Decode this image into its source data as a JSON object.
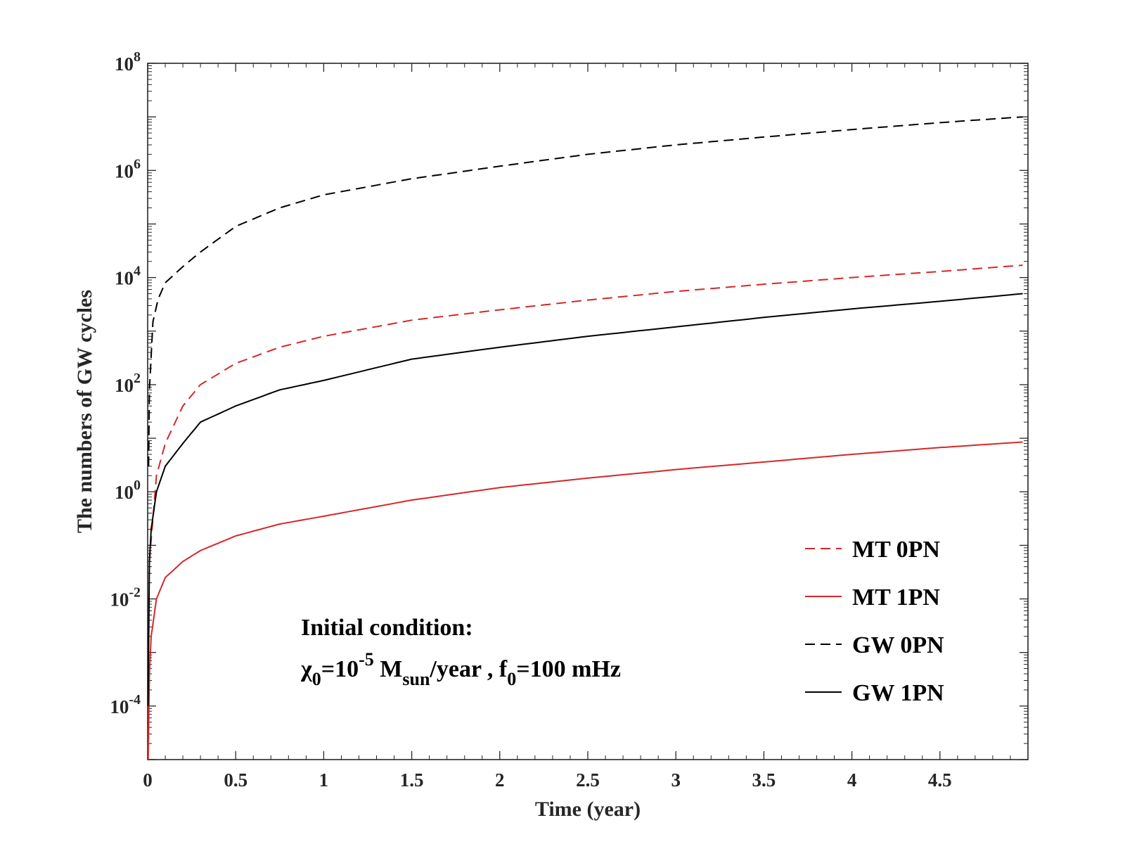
{
  "chart_data": {
    "type": "line",
    "xlabel": "Time (year)",
    "ylabel": "The numbers of GW cycles",
    "xlim": [
      0,
      5
    ],
    "ylim_log10": [
      -5,
      8
    ],
    "yscale": "log",
    "x_ticks": [
      0,
      0.5,
      1,
      1.5,
      2,
      2.5,
      3,
      3.5,
      4,
      4.5
    ],
    "x_tick_labels": [
      "0",
      "0.5",
      "1",
      "1.5",
      "2",
      "2.5",
      "3",
      "3.5",
      "4",
      "4.5"
    ],
    "y_ticks": [
      {
        "base": "10",
        "exp": "-4",
        "log": -4
      },
      {
        "base": "10",
        "exp": "-2",
        "log": -2
      },
      {
        "base": "10",
        "exp": "0",
        "log": 0
      },
      {
        "base": "10",
        "exp": "2",
        "log": 2
      },
      {
        "base": "10",
        "exp": "4",
        "log": 4
      },
      {
        "base": "10",
        "exp": "6",
        "log": 6
      },
      {
        "base": "10",
        "exp": "8",
        "log": 8
      }
    ],
    "legend_position": "bottom-right",
    "series": [
      {
        "name": "MT 0PN",
        "color": "#d62728",
        "dash": "dashed",
        "points": [
          [
            0.01,
            0.05
          ],
          [
            0.05,
            2
          ],
          [
            0.1,
            8
          ],
          [
            0.2,
            40
          ],
          [
            0.3,
            100
          ],
          [
            0.5,
            250
          ],
          [
            0.75,
            500
          ],
          [
            1,
            800
          ],
          [
            1.5,
            1600
          ],
          [
            2,
            2500
          ],
          [
            2.5,
            3800
          ],
          [
            3,
            5500
          ],
          [
            3.5,
            7500
          ],
          [
            4,
            10000
          ],
          [
            4.5,
            13000
          ],
          [
            4.97,
            17000
          ]
        ]
      },
      {
        "name": "MT 1PN",
        "color": "#d62728",
        "dash": "solid",
        "points": [
          [
            0.003,
            1e-05
          ],
          [
            0.01,
            0.0004
          ],
          [
            0.02,
            0.002
          ],
          [
            0.05,
            0.01
          ],
          [
            0.1,
            0.025
          ],
          [
            0.2,
            0.05
          ],
          [
            0.3,
            0.08
          ],
          [
            0.5,
            0.15
          ],
          [
            0.75,
            0.25
          ],
          [
            1,
            0.35
          ],
          [
            1.5,
            0.7
          ],
          [
            2,
            1.2
          ],
          [
            2.5,
            1.8
          ],
          [
            3,
            2.6
          ],
          [
            3.5,
            3.6
          ],
          [
            4,
            5
          ],
          [
            4.5,
            6.7
          ],
          [
            4.97,
            8.5
          ]
        ]
      },
      {
        "name": "GW 0PN",
        "color": "#000000",
        "dash": "dashed",
        "points": [
          [
            0.005,
            3
          ],
          [
            0.01,
            80
          ],
          [
            0.03,
            1500
          ],
          [
            0.06,
            4000
          ],
          [
            0.1,
            8000
          ],
          [
            0.2,
            16000
          ],
          [
            0.3,
            30000
          ],
          [
            0.5,
            90000
          ],
          [
            0.75,
            200000
          ],
          [
            1,
            350000
          ],
          [
            1.5,
            700000
          ],
          [
            2,
            1200000
          ],
          [
            2.5,
            2000000
          ],
          [
            3,
            3000000
          ],
          [
            3.5,
            4200000
          ],
          [
            4,
            5800000
          ],
          [
            4.5,
            7800000
          ],
          [
            4.97,
            10000000
          ]
        ]
      },
      {
        "name": "GW 1PN",
        "color": "#000000",
        "dash": "solid",
        "points": [
          [
            0.002,
            0.0001
          ],
          [
            0.005,
            0.001
          ],
          [
            0.01,
            0.05
          ],
          [
            0.02,
            0.2
          ],
          [
            0.05,
            1
          ],
          [
            0.1,
            3
          ],
          [
            0.2,
            8
          ],
          [
            0.3,
            20
          ],
          [
            0.5,
            40
          ],
          [
            0.75,
            80
          ],
          [
            1,
            120
          ],
          [
            1.5,
            300
          ],
          [
            2,
            500
          ],
          [
            2.5,
            800
          ],
          [
            3,
            1200
          ],
          [
            3.5,
            1800
          ],
          [
            4,
            2600
          ],
          [
            4.5,
            3600
          ],
          [
            4.97,
            5000
          ]
        ]
      }
    ],
    "annotation": {
      "line1": "Initial condition:",
      "chi_symbol": "χ",
      "chi_sub": "0",
      "eq1": "=10",
      "exp1": "-5",
      "unit_m": " M",
      "unit_m_sub": "sun",
      "unit_rest": "/year  ,  f",
      "f_sub": "0",
      "f_rest": "=100 mHz"
    }
  }
}
